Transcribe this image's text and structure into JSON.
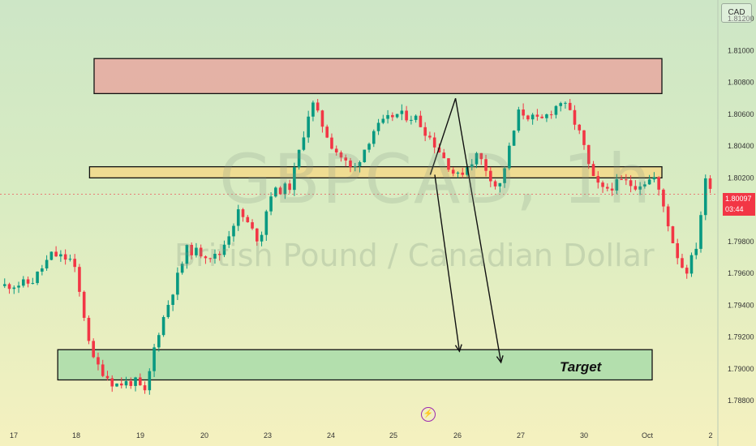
{
  "symbol_watermark": "GBPCAD, 1h",
  "name_watermark": "British Pound / Canadian Dollar",
  "currency_button": "CAD",
  "current_price": {
    "value": "1.80097",
    "countdown": "03:44"
  },
  "target_label": "Target",
  "colors": {
    "up": "#089981",
    "down": "#f23645",
    "resistance_zone": "#e8a8a0",
    "pivot_zone": "#f3d98a",
    "target_zone": "#a9dca9"
  },
  "chart_data": {
    "type": "candlestick",
    "ylim": [
      1.787,
      1.8125
    ],
    "y_ticks": [
      "1.81200",
      "1.81000",
      "1.80800",
      "1.80600",
      "1.80400",
      "1.80200",
      "1.79800",
      "1.79600",
      "1.79400",
      "1.79200",
      "1.79000",
      "1.78800"
    ],
    "x_ticks": [
      "17",
      "18",
      "19",
      "20",
      "23",
      "24",
      "25",
      "26",
      "27",
      "30",
      "Oct",
      "2"
    ],
    "trajectory": [
      [
        0,
        1.7952
      ],
      [
        3,
        1.7954
      ],
      [
        5,
        1.7972
      ],
      [
        7,
        1.7968
      ],
      [
        9,
        1.7905
      ],
      [
        11,
        1.789
      ],
      [
        13,
        1.7892
      ],
      [
        14,
        1.7884
      ],
      [
        15,
        1.7918
      ],
      [
        18,
        1.7975
      ],
      [
        21,
        1.797
      ],
      [
        23,
        1.7999
      ],
      [
        25,
        1.798
      ],
      [
        26,
        1.801
      ],
      [
        28,
        1.8015
      ],
      [
        30,
        1.8068
      ],
      [
        32,
        1.804
      ],
      [
        34,
        1.8024
      ],
      [
        36,
        1.805
      ],
      [
        38,
        1.806
      ],
      [
        40,
        1.8058
      ],
      [
        42,
        1.804
      ],
      [
        44,
        1.802
      ],
      [
        46,
        1.8035
      ],
      [
        48,
        1.8012
      ],
      [
        50,
        1.8062
      ],
      [
        52,
        1.8055
      ],
      [
        54,
        1.8068
      ],
      [
        55,
        1.806
      ],
      [
        56,
        1.8045
      ],
      [
        57,
        1.802
      ],
      [
        58,
        1.8012
      ],
      [
        60,
        1.8018
      ],
      [
        61,
        1.8015
      ],
      [
        63,
        1.802
      ],
      [
        64,
        1.8
      ],
      [
        65,
        1.7975
      ],
      [
        66,
        1.796
      ],
      [
        67,
        1.7975
      ],
      [
        68,
        1.802
      ],
      [
        68.5,
        1.8015
      ]
    ],
    "zones": [
      {
        "name": "resistance",
        "from": 1.8073,
        "to": 1.8095,
        "x_start": 14.5,
        "x_end": 102
      },
      {
        "name": "pivot",
        "from": 1.802,
        "to": 1.8027,
        "x_start": 13.8,
        "x_end": 102
      },
      {
        "name": "target",
        "from": 1.7893,
        "to": 1.7912,
        "x_start": 8.9,
        "x_end": 100.5
      }
    ],
    "projections": [
      {
        "points": [
          [
            66.3,
            1.8022
          ],
          [
            70.2,
            1.807
          ],
          [
            77.2,
            1.7904
          ]
        ]
      },
      {
        "points": [
          [
            67.0,
            1.8022
          ],
          [
            70.8,
            1.7911
          ]
        ]
      }
    ]
  }
}
